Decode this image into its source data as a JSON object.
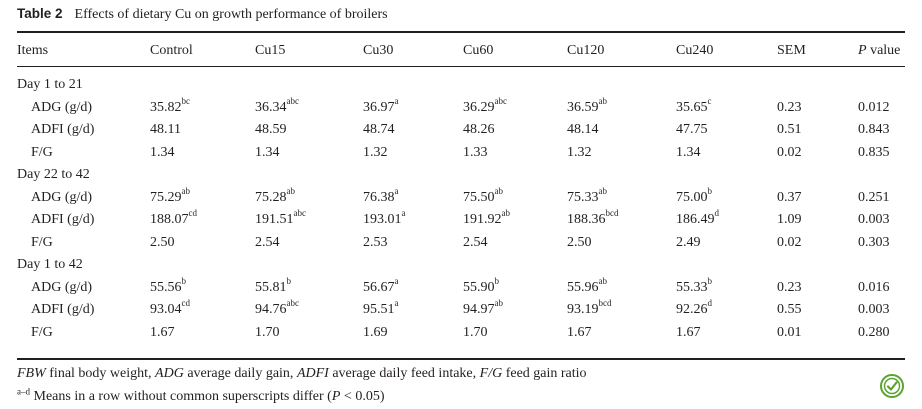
{
  "caption": {
    "label": "Table 2",
    "text": "Effects of dietary Cu on growth performance of broilers"
  },
  "headers": [
    "Items",
    "Control",
    "Cu15",
    "Cu30",
    "Cu60",
    "Cu120",
    "Cu240",
    "SEM",
    "P value"
  ],
  "headers_italic_first_word": "P",
  "sections": [
    {
      "title": "Day 1 to 21",
      "rows": [
        {
          "label": "ADG (g/d)",
          "cells": [
            {
              "v": "35.82",
              "s": "bc"
            },
            {
              "v": "36.34",
              "s": "abc"
            },
            {
              "v": "36.97",
              "s": "a"
            },
            {
              "v": "36.29",
              "s": "abc"
            },
            {
              "v": "36.59",
              "s": "ab"
            },
            {
              "v": "35.65",
              "s": "c"
            },
            {
              "v": "0.23",
              "s": ""
            },
            {
              "v": "0.012",
              "s": ""
            }
          ]
        },
        {
          "label": "ADFI (g/d)",
          "cells": [
            {
              "v": "48.11",
              "s": ""
            },
            {
              "v": "48.59",
              "s": ""
            },
            {
              "v": "48.74",
              "s": ""
            },
            {
              "v": "48.26",
              "s": ""
            },
            {
              "v": "48.14",
              "s": ""
            },
            {
              "v": "47.75",
              "s": ""
            },
            {
              "v": "0.51",
              "s": ""
            },
            {
              "v": "0.843",
              "s": ""
            }
          ]
        },
        {
          "label": "F/G",
          "cells": [
            {
              "v": "1.34",
              "s": ""
            },
            {
              "v": "1.34",
              "s": ""
            },
            {
              "v": "1.32",
              "s": ""
            },
            {
              "v": "1.33",
              "s": ""
            },
            {
              "v": "1.32",
              "s": ""
            },
            {
              "v": "1.34",
              "s": ""
            },
            {
              "v": "0.02",
              "s": ""
            },
            {
              "v": "0.835",
              "s": ""
            }
          ]
        }
      ]
    },
    {
      "title": "Day 22 to 42",
      "rows": [
        {
          "label": "ADG (g/d)",
          "cells": [
            {
              "v": "75.29",
              "s": "ab"
            },
            {
              "v": "75.28",
              "s": "ab"
            },
            {
              "v": "76.38",
              "s": "a"
            },
            {
              "v": "75.50",
              "s": "ab"
            },
            {
              "v": "75.33",
              "s": "ab"
            },
            {
              "v": "75.00",
              "s": "b"
            },
            {
              "v": "0.37",
              "s": ""
            },
            {
              "v": "0.251",
              "s": ""
            }
          ]
        },
        {
          "label": "ADFI (g/d)",
          "cells": [
            {
              "v": "188.07",
              "s": "cd"
            },
            {
              "v": "191.51",
              "s": "abc"
            },
            {
              "v": "193.01",
              "s": "a"
            },
            {
              "v": "191.92",
              "s": "ab"
            },
            {
              "v": "188.36",
              "s": "bcd"
            },
            {
              "v": "186.49",
              "s": "d"
            },
            {
              "v": "1.09",
              "s": ""
            },
            {
              "v": "0.003",
              "s": ""
            }
          ]
        },
        {
          "label": "F/G",
          "cells": [
            {
              "v": "2.50",
              "s": ""
            },
            {
              "v": "2.54",
              "s": ""
            },
            {
              "v": "2.53",
              "s": ""
            },
            {
              "v": "2.54",
              "s": ""
            },
            {
              "v": "2.50",
              "s": ""
            },
            {
              "v": "2.49",
              "s": ""
            },
            {
              "v": "0.02",
              "s": ""
            },
            {
              "v": "0.303",
              "s": ""
            }
          ]
        }
      ]
    },
    {
      "title": "Day 1 to 42",
      "rows": [
        {
          "label": "ADG (g/d)",
          "cells": [
            {
              "v": "55.56",
              "s": "b"
            },
            {
              "v": "55.81",
              "s": "b"
            },
            {
              "v": "56.67",
              "s": "a"
            },
            {
              "v": "55.90",
              "s": "b"
            },
            {
              "v": "55.96",
              "s": "ab"
            },
            {
              "v": "55.33",
              "s": "b"
            },
            {
              "v": "0.23",
              "s": ""
            },
            {
              "v": "0.016",
              "s": ""
            }
          ]
        },
        {
          "label": "ADFI (g/d)",
          "cells": [
            {
              "v": "93.04",
              "s": "cd"
            },
            {
              "v": "94.76",
              "s": "abc"
            },
            {
              "v": "95.51",
              "s": "a"
            },
            {
              "v": "94.97",
              "s": "ab"
            },
            {
              "v": "93.19",
              "s": "bcd"
            },
            {
              "v": "92.26",
              "s": "d"
            },
            {
              "v": "0.55",
              "s": ""
            },
            {
              "v": "0.003",
              "s": ""
            }
          ]
        },
        {
          "label": "F/G",
          "cells": [
            {
              "v": "1.67",
              "s": ""
            },
            {
              "v": "1.70",
              "s": ""
            },
            {
              "v": "1.69",
              "s": ""
            },
            {
              "v": "1.70",
              "s": ""
            },
            {
              "v": "1.67",
              "s": ""
            },
            {
              "v": "1.67",
              "s": ""
            },
            {
              "v": "0.01",
              "s": ""
            },
            {
              "v": "0.280",
              "s": ""
            }
          ]
        }
      ]
    }
  ],
  "footnotes": {
    "abbreviations": [
      {
        "abbr": "FBW",
        "def": "final body weight"
      },
      {
        "abbr": "ADG",
        "def": "average daily gain"
      },
      {
        "abbr": "ADFI",
        "def": "average daily feed intake"
      },
      {
        "abbr": "F/G",
        "def": "feed gain ratio"
      }
    ],
    "superscript_mark": "a–d",
    "means_text_before": "Means in a row without common superscripts differ (",
    "p_symbol": "P",
    "means_text_after": " < 0.05)"
  },
  "logo_icon": "crossmark-icon",
  "colors": {
    "text": "#231f20",
    "logo_green": "#5aa42e"
  }
}
